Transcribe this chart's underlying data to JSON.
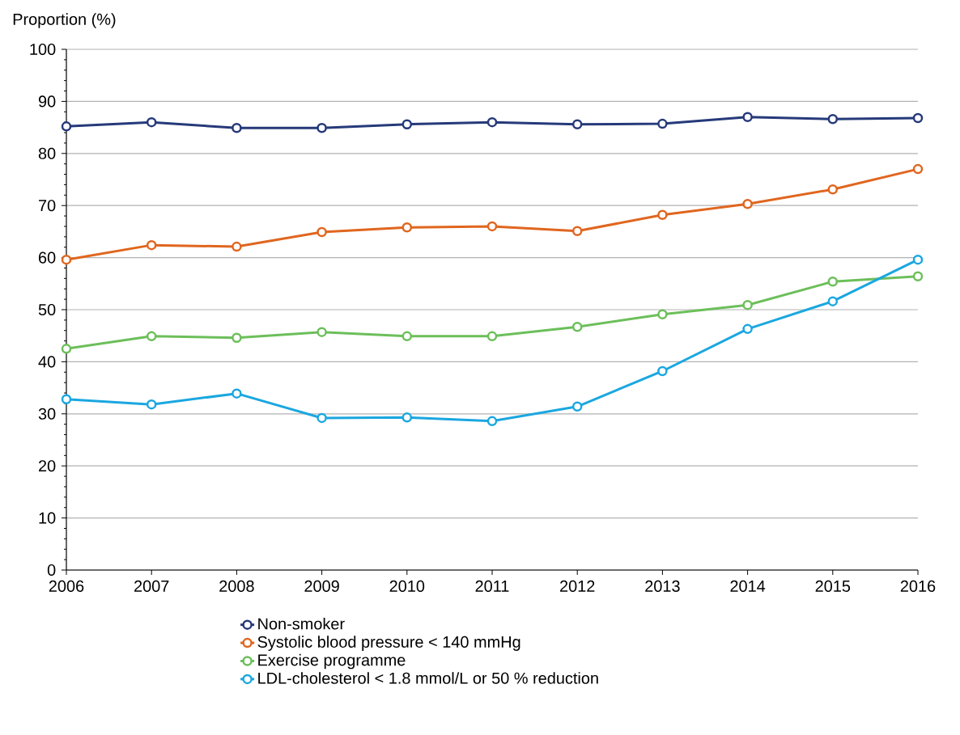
{
  "chart_data": {
    "type": "line",
    "ylabel": "Proportion (%)",
    "x": [
      2006,
      2007,
      2008,
      2009,
      2010,
      2011,
      2012,
      2013,
      2014,
      2015,
      2016
    ],
    "xlim": [
      2006,
      2016
    ],
    "xticks": [
      2006,
      2007,
      2008,
      2009,
      2010,
      2011,
      2012,
      2013,
      2014,
      2015,
      2016
    ],
    "ylim": [
      0,
      100
    ],
    "yticks": [
      0,
      10,
      20,
      30,
      40,
      50,
      60,
      70,
      80,
      90,
      100
    ],
    "grid": "y",
    "legend": "bottom",
    "marker": "circle",
    "line_style": "solid",
    "series": [
      {
        "name": "Non-smoker",
        "color": "#263a7a",
        "values": [
          85.2,
          86.0,
          84.9,
          84.9,
          85.6,
          86.0,
          85.6,
          85.7,
          87.0,
          86.6,
          86.8
        ]
      },
      {
        "name": "Systolic blood pressure < 140 mmHg",
        "color": "#e0661f",
        "values": [
          59.6,
          62.4,
          62.1,
          64.9,
          65.8,
          66.0,
          65.1,
          68.2,
          70.3,
          73.1,
          77.0
        ]
      },
      {
        "name": "Exercise programme",
        "color": "#6cbf5a",
        "values": [
          42.5,
          44.9,
          44.6,
          45.7,
          44.9,
          44.9,
          46.7,
          49.1,
          50.9,
          55.4,
          56.4
        ]
      },
      {
        "name": "LDL-cholesterol < 1.8 mmol/L or 50 % reduction",
        "color": "#1aa7e0",
        "values": [
          32.8,
          31.8,
          33.9,
          29.2,
          29.3,
          28.6,
          31.4,
          38.2,
          46.3,
          51.6,
          59.6
        ]
      }
    ]
  }
}
